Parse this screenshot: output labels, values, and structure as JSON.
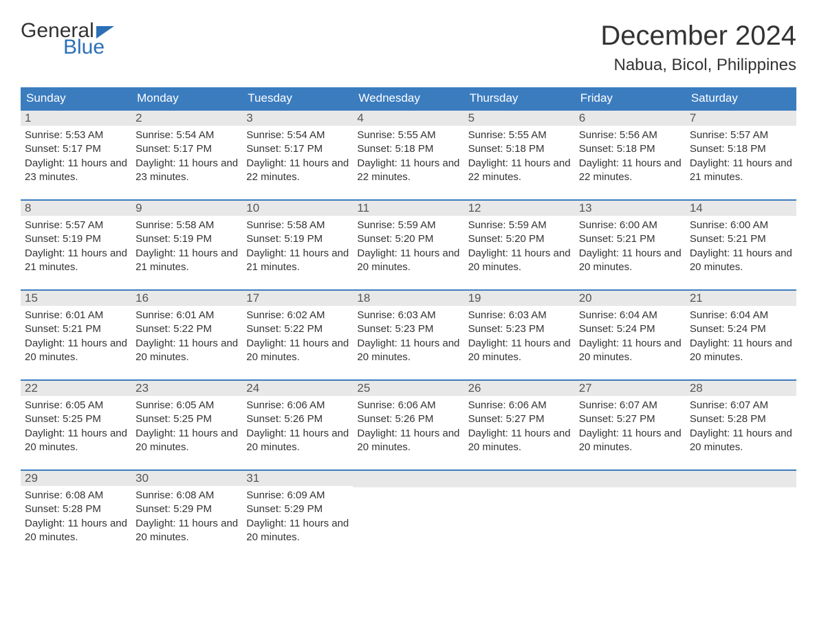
{
  "logo": {
    "top": "General",
    "bottom": "Blue",
    "flag_color": "#2c6fb5"
  },
  "title": "December 2024",
  "location": "Nabua, Bicol, Philippines",
  "header_bg": "#3b7cbf",
  "band_bg": "#e8e8e8",
  "text_color": "#333333",
  "accent_color": "#2c6fb5",
  "columns": [
    "Sunday",
    "Monday",
    "Tuesday",
    "Wednesday",
    "Thursday",
    "Friday",
    "Saturday"
  ],
  "labels": {
    "sunrise": "Sunrise: ",
    "sunset": "Sunset: ",
    "daylight": "Daylight: "
  },
  "weeks": [
    [
      {
        "n": "1",
        "sr": "5:53 AM",
        "ss": "5:17 PM",
        "dl": "11 hours and 23 minutes."
      },
      {
        "n": "2",
        "sr": "5:54 AM",
        "ss": "5:17 PM",
        "dl": "11 hours and 23 minutes."
      },
      {
        "n": "3",
        "sr": "5:54 AM",
        "ss": "5:17 PM",
        "dl": "11 hours and 22 minutes."
      },
      {
        "n": "4",
        "sr": "5:55 AM",
        "ss": "5:18 PM",
        "dl": "11 hours and 22 minutes."
      },
      {
        "n": "5",
        "sr": "5:55 AM",
        "ss": "5:18 PM",
        "dl": "11 hours and 22 minutes."
      },
      {
        "n": "6",
        "sr": "5:56 AM",
        "ss": "5:18 PM",
        "dl": "11 hours and 22 minutes."
      },
      {
        "n": "7",
        "sr": "5:57 AM",
        "ss": "5:18 PM",
        "dl": "11 hours and 21 minutes."
      }
    ],
    [
      {
        "n": "8",
        "sr": "5:57 AM",
        "ss": "5:19 PM",
        "dl": "11 hours and 21 minutes."
      },
      {
        "n": "9",
        "sr": "5:58 AM",
        "ss": "5:19 PM",
        "dl": "11 hours and 21 minutes."
      },
      {
        "n": "10",
        "sr": "5:58 AM",
        "ss": "5:19 PM",
        "dl": "11 hours and 21 minutes."
      },
      {
        "n": "11",
        "sr": "5:59 AM",
        "ss": "5:20 PM",
        "dl": "11 hours and 20 minutes."
      },
      {
        "n": "12",
        "sr": "5:59 AM",
        "ss": "5:20 PM",
        "dl": "11 hours and 20 minutes."
      },
      {
        "n": "13",
        "sr": "6:00 AM",
        "ss": "5:21 PM",
        "dl": "11 hours and 20 minutes."
      },
      {
        "n": "14",
        "sr": "6:00 AM",
        "ss": "5:21 PM",
        "dl": "11 hours and 20 minutes."
      }
    ],
    [
      {
        "n": "15",
        "sr": "6:01 AM",
        "ss": "5:21 PM",
        "dl": "11 hours and 20 minutes."
      },
      {
        "n": "16",
        "sr": "6:01 AM",
        "ss": "5:22 PM",
        "dl": "11 hours and 20 minutes."
      },
      {
        "n": "17",
        "sr": "6:02 AM",
        "ss": "5:22 PM",
        "dl": "11 hours and 20 minutes."
      },
      {
        "n": "18",
        "sr": "6:03 AM",
        "ss": "5:23 PM",
        "dl": "11 hours and 20 minutes."
      },
      {
        "n": "19",
        "sr": "6:03 AM",
        "ss": "5:23 PM",
        "dl": "11 hours and 20 minutes."
      },
      {
        "n": "20",
        "sr": "6:04 AM",
        "ss": "5:24 PM",
        "dl": "11 hours and 20 minutes."
      },
      {
        "n": "21",
        "sr": "6:04 AM",
        "ss": "5:24 PM",
        "dl": "11 hours and 20 minutes."
      }
    ],
    [
      {
        "n": "22",
        "sr": "6:05 AM",
        "ss": "5:25 PM",
        "dl": "11 hours and 20 minutes."
      },
      {
        "n": "23",
        "sr": "6:05 AM",
        "ss": "5:25 PM",
        "dl": "11 hours and 20 minutes."
      },
      {
        "n": "24",
        "sr": "6:06 AM",
        "ss": "5:26 PM",
        "dl": "11 hours and 20 minutes."
      },
      {
        "n": "25",
        "sr": "6:06 AM",
        "ss": "5:26 PM",
        "dl": "11 hours and 20 minutes."
      },
      {
        "n": "26",
        "sr": "6:06 AM",
        "ss": "5:27 PM",
        "dl": "11 hours and 20 minutes."
      },
      {
        "n": "27",
        "sr": "6:07 AM",
        "ss": "5:27 PM",
        "dl": "11 hours and 20 minutes."
      },
      {
        "n": "28",
        "sr": "6:07 AM",
        "ss": "5:28 PM",
        "dl": "11 hours and 20 minutes."
      }
    ],
    [
      {
        "n": "29",
        "sr": "6:08 AM",
        "ss": "5:28 PM",
        "dl": "11 hours and 20 minutes."
      },
      {
        "n": "30",
        "sr": "6:08 AM",
        "ss": "5:29 PM",
        "dl": "11 hours and 20 minutes."
      },
      {
        "n": "31",
        "sr": "6:09 AM",
        "ss": "5:29 PM",
        "dl": "11 hours and 20 minutes."
      },
      null,
      null,
      null,
      null
    ]
  ]
}
